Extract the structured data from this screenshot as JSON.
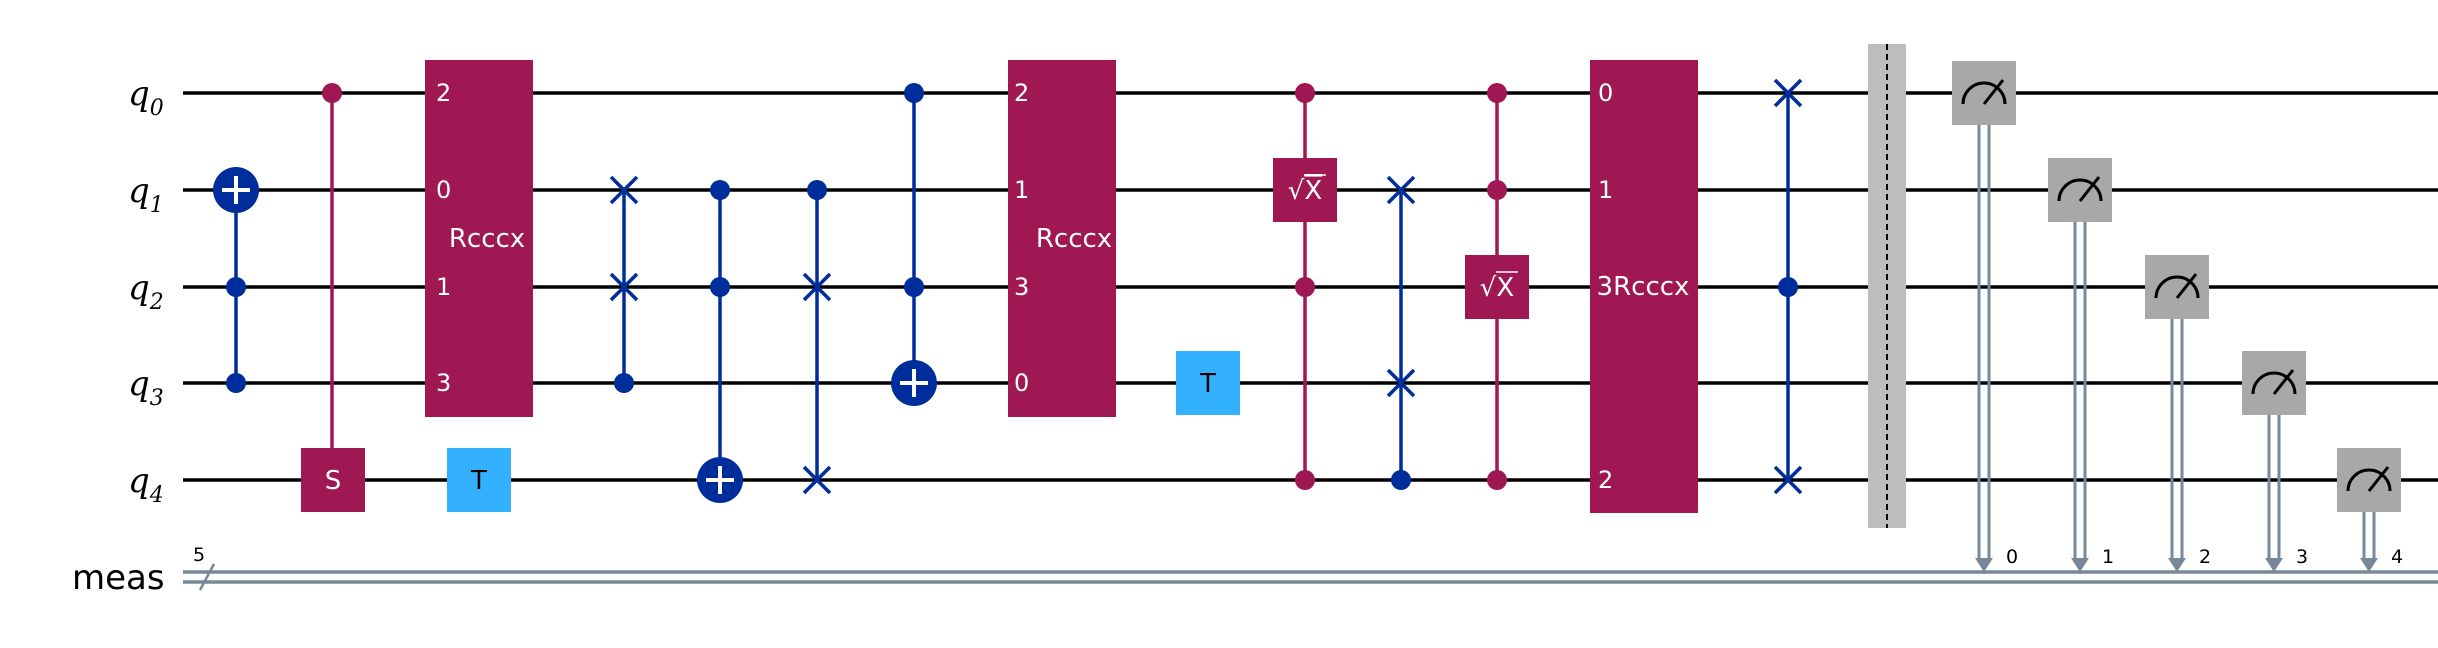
{
  "colors": {
    "wire": "#000000",
    "creg": "#778899",
    "multi_gate": "#9F1853",
    "control": "#002D9C",
    "t_gate": "#33B1FF",
    "measure": "#A8A8A8",
    "barrier": "#BDBDBD"
  },
  "wires": {
    "qubits": [
      {
        "name": "q",
        "index": "0"
      },
      {
        "name": "q",
        "index": "1"
      },
      {
        "name": "q",
        "index": "2"
      },
      {
        "name": "q",
        "index": "3"
      },
      {
        "name": "q",
        "index": "4"
      }
    ],
    "classical": {
      "label": "meas",
      "size": "5"
    }
  },
  "gates": {
    "s_label": "S",
    "t_label": "T",
    "rcccx_label": "Rcccx",
    "rcccx3_label": "3Rcccx",
    "sx_label": "X",
    "sqrt_symbol": "√",
    "rcccx1_ports": [
      "2",
      "0",
      "1",
      "3"
    ],
    "rcccx2_ports": [
      "2",
      "1",
      "3",
      "0"
    ],
    "rcccx3_ports": [
      "0",
      "1",
      "",
      "2"
    ],
    "measure_bits": [
      "0",
      "1",
      "2",
      "3",
      "4"
    ]
  }
}
